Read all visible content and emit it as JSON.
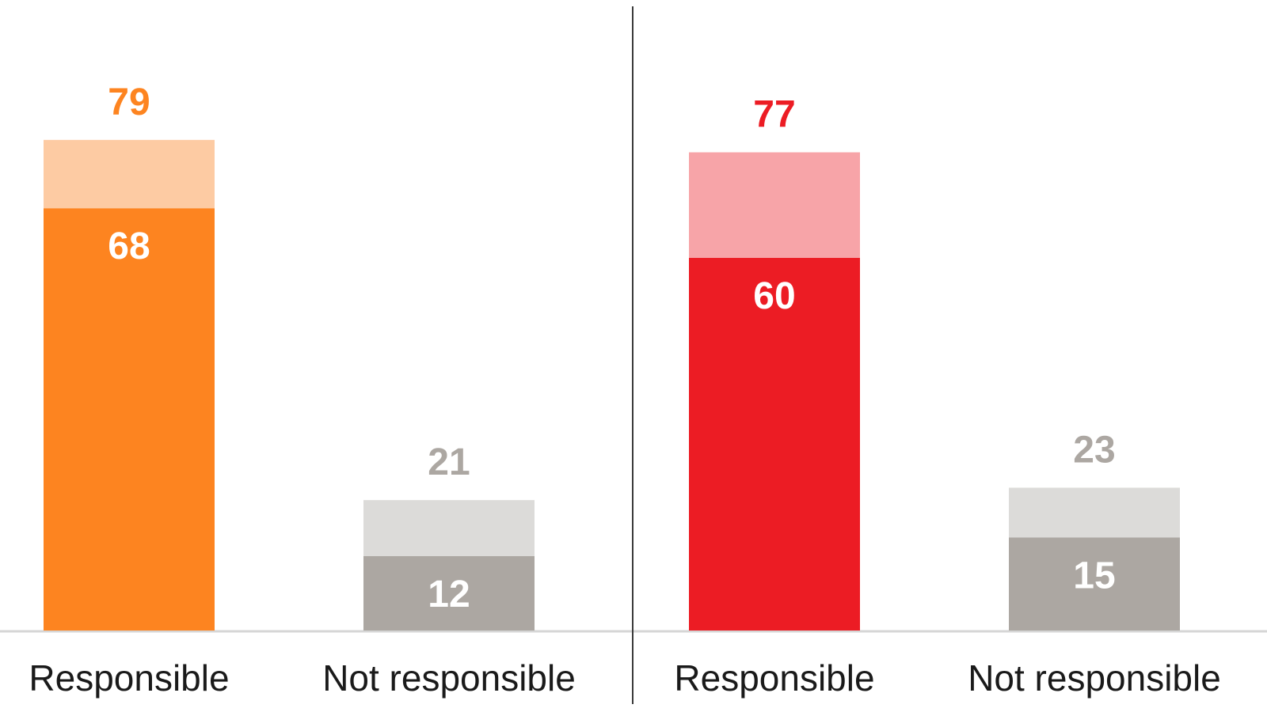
{
  "chart_data": [
    {
      "type": "bar",
      "stacked": true,
      "categories": [
        "Responsible",
        "Not responsible"
      ],
      "series": [
        {
          "values": [
            68,
            12
          ]
        },
        {
          "values": [
            11,
            9
          ]
        }
      ],
      "totals": [
        79,
        21
      ],
      "colors": {
        "Responsible": {
          "strong": "#fd8420",
          "light": "#fdcba3",
          "total_label": "#fd8420"
        },
        "Not responsible": {
          "strong": "#aca7a2",
          "light": "#dcdbd9",
          "total_label": "#aca7a2"
        }
      },
      "ylim": [
        0,
        100
      ],
      "grid": false,
      "legend": "none"
    },
    {
      "type": "bar",
      "stacked": true,
      "categories": [
        "Responsible",
        "Not responsible"
      ],
      "series": [
        {
          "values": [
            60,
            15
          ]
        },
        {
          "values": [
            17,
            8
          ]
        }
      ],
      "totals": [
        77,
        23
      ],
      "colors": {
        "Responsible": {
          "strong": "#ec1c24",
          "light": "#f7a4a8",
          "total_label": "#ec1c24"
        },
        "Not responsible": {
          "strong": "#aca7a2",
          "light": "#dcdbd9",
          "total_label": "#aca7a2"
        }
      },
      "ylim": [
        0,
        100
      ],
      "grid": false,
      "legend": "none"
    }
  ]
}
